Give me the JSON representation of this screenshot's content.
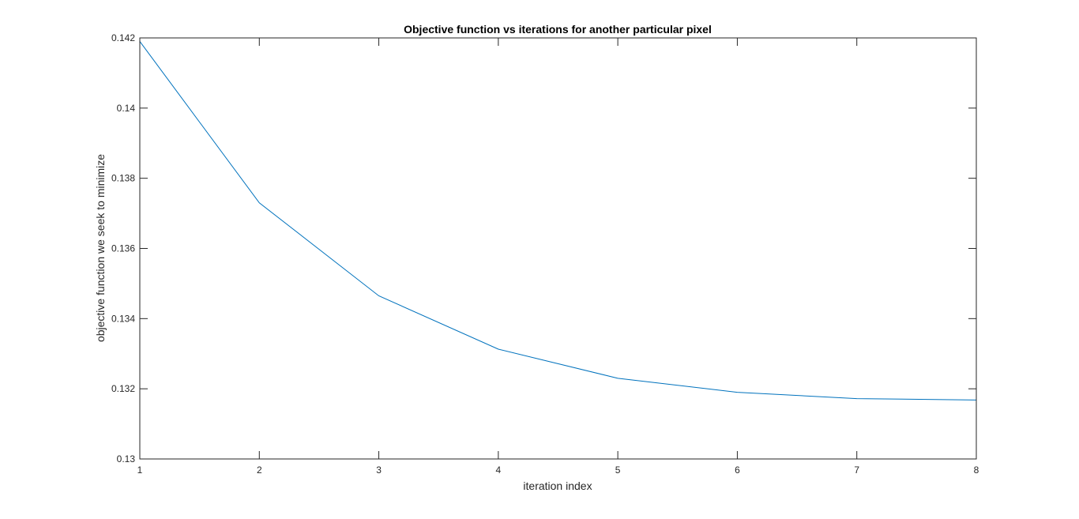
{
  "chart_data": {
    "type": "line",
    "title": "Objective function vs iterations for another particular pixel",
    "xlabel": "iteration index",
    "ylabel": "objective function we seek to minimize",
    "xlim": [
      1,
      8
    ],
    "ylim": [
      0.13,
      0.142
    ],
    "x_ticks": [
      1,
      2,
      3,
      4,
      5,
      6,
      7,
      8
    ],
    "y_ticks": [
      "0.13",
      "0.132",
      "0.134",
      "0.136",
      "0.138",
      "0.14",
      "0.142"
    ],
    "grid": false,
    "box": true,
    "series": [
      {
        "color": "#0072BD",
        "x": [
          1,
          2,
          3,
          4,
          5,
          6,
          7,
          8
        ],
        "y": [
          0.1419,
          0.1373,
          0.13465,
          0.13313,
          0.1323,
          0.1319,
          0.13172,
          0.13168
        ]
      }
    ]
  }
}
